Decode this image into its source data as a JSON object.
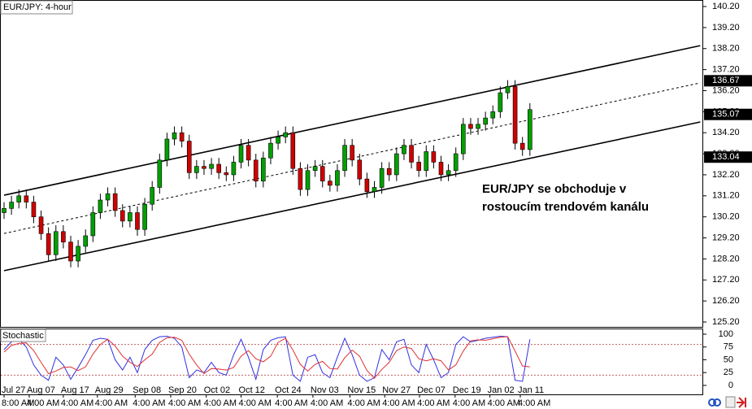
{
  "chart_data": [
    {
      "type": "candlestick",
      "title": "EUR/JPY: 4-hour",
      "open": [
        130.4,
        130.6,
        130.9,
        131.2,
        130.9,
        130.2,
        129.4,
        128.4,
        129.5,
        129.0,
        128.1,
        128.8,
        129.3,
        130.4,
        131.0,
        131.3,
        130.5,
        130.0,
        130.4,
        129.6,
        130.8,
        131.6,
        132.9,
        133.9,
        134.2,
        133.8,
        132.3,
        132.6,
        132.5,
        132.7,
        132.3,
        132.2,
        132.8,
        133.6,
        132.9,
        131.9,
        133.0,
        133.7,
        134.0,
        134.2,
        132.5,
        131.5,
        132.4,
        132.6,
        131.9,
        131.7,
        132.4,
        133.6,
        132.9,
        132.0,
        131.4,
        131.6,
        132.5,
        132.2,
        133.2,
        133.6,
        132.8,
        132.4,
        133.3,
        132.8,
        132.2,
        132.4,
        133.2,
        134.6,
        134.4,
        134.6,
        134.9,
        135.2,
        136.1,
        136.4,
        133.7,
        133.4
      ],
      "high": [
        130.9,
        131.2,
        131.5,
        131.5,
        131.2,
        130.5,
        129.7,
        129.8,
        129.8,
        129.3,
        129.1,
        129.6,
        130.7,
        131.3,
        131.6,
        131.6,
        130.8,
        130.7,
        130.7,
        131.1,
        131.9,
        133.2,
        134.2,
        134.5,
        134.5,
        134.1,
        132.9,
        132.9,
        133.0,
        133.0,
        132.6,
        133.1,
        133.9,
        133.9,
        133.2,
        133.3,
        134.0,
        134.3,
        134.5,
        134.5,
        132.8,
        132.7,
        132.9,
        132.9,
        132.2,
        132.7,
        133.9,
        133.9,
        133.2,
        132.3,
        131.9,
        132.8,
        132.8,
        133.5,
        133.9,
        133.9,
        133.1,
        133.6,
        133.6,
        133.1,
        132.7,
        133.5,
        134.9,
        134.9,
        134.9,
        135.2,
        135.5,
        136.4,
        136.7,
        136.7,
        134.0,
        135.6
      ],
      "low": [
        130.1,
        130.3,
        130.6,
        130.6,
        129.9,
        129.1,
        128.1,
        128.1,
        128.7,
        127.8,
        127.8,
        128.5,
        129.0,
        130.1,
        130.7,
        130.2,
        129.7,
        129.7,
        129.3,
        129.3,
        130.5,
        131.3,
        132.6,
        133.6,
        133.5,
        132.0,
        132.0,
        132.2,
        132.2,
        132.0,
        131.9,
        131.9,
        132.5,
        132.6,
        131.6,
        131.6,
        132.7,
        133.4,
        133.7,
        132.2,
        131.2,
        131.2,
        132.1,
        131.6,
        131.4,
        131.4,
        132.1,
        132.6,
        131.7,
        131.1,
        131.1,
        131.3,
        131.9,
        131.9,
        132.9,
        132.5,
        132.1,
        132.1,
        132.5,
        131.9,
        131.9,
        132.1,
        132.9,
        134.1,
        134.1,
        134.3,
        134.6,
        134.9,
        135.8,
        133.4,
        133.1,
        133.1
      ],
      "close": [
        130.6,
        130.9,
        131.2,
        130.9,
        130.2,
        129.4,
        128.4,
        129.5,
        129.0,
        128.1,
        128.8,
        129.3,
        130.4,
        131.0,
        131.3,
        130.5,
        130.0,
        130.4,
        129.6,
        130.8,
        131.6,
        132.9,
        133.9,
        134.2,
        133.8,
        132.3,
        132.6,
        132.5,
        132.7,
        132.3,
        132.2,
        132.8,
        133.6,
        132.9,
        131.9,
        133.0,
        133.7,
        134.0,
        134.2,
        132.5,
        131.5,
        132.4,
        132.6,
        131.9,
        131.7,
        132.4,
        133.6,
        132.9,
        132.0,
        131.4,
        131.6,
        132.5,
        132.2,
        133.2,
        133.6,
        132.8,
        132.4,
        133.3,
        132.8,
        132.2,
        132.4,
        133.2,
        134.6,
        134.4,
        134.6,
        134.9,
        135.2,
        136.1,
        136.4,
        133.7,
        133.4,
        135.3
      ],
      "up_color": "#00a000",
      "down_color": "#d00000",
      "ylim": [
        124.93,
        140.51
      ],
      "yticks": [
        {
          "value": 140.2,
          "label": "140.20"
        },
        {
          "value": 139.2,
          "label": "139.20"
        },
        {
          "value": 138.2,
          "label": "138.20"
        },
        {
          "value": 137.2,
          "label": "137.20"
        },
        {
          "value": 136.2,
          "label": "136.20"
        },
        {
          "value": 135.2,
          "label": "135.20"
        },
        {
          "value": 134.2,
          "label": "134.20"
        },
        {
          "value": 133.2,
          "label": "133.20"
        },
        {
          "value": 132.2,
          "label": "132.20"
        },
        {
          "value": 131.2,
          "label": "131.20"
        },
        {
          "value": 130.2,
          "label": "130.20"
        },
        {
          "value": 129.2,
          "label": "129.20"
        },
        {
          "value": 128.2,
          "label": "128.20"
        },
        {
          "value": 127.2,
          "label": "127.20"
        },
        {
          "value": 126.2,
          "label": "126.20"
        },
        {
          "value": 125.2,
          "label": "125.20"
        }
      ],
      "price_labels": [
        136.67,
        135.07,
        133.04
      ],
      "channel": [
        {
          "style": "solid",
          "x": [
            0,
            94
          ],
          "y": [
            131.23,
            138.34
          ]
        },
        {
          "style": "dashed",
          "x": [
            0,
            94
          ],
          "y": [
            129.41,
            136.57
          ]
        },
        {
          "style": "solid",
          "x": [
            0,
            94
          ],
          "y": [
            127.64,
            134.71
          ]
        }
      ],
      "annotation": [
        "EUR/JPY se obchoduje v",
        "rostoucím trendovém kanálu"
      ]
    },
    {
      "type": "line",
      "title": "Stochastic",
      "series": [
        {
          "color": "#3030e0",
          "values": [
            70,
            85,
            90,
            75,
            40,
            20,
            10,
            55,
            40,
            12,
            35,
            60,
            88,
            92,
            90,
            50,
            30,
            55,
            25,
            70,
            88,
            95,
            96,
            92,
            75,
            15,
            30,
            25,
            45,
            25,
            20,
            60,
            90,
            55,
            12,
            70,
            88,
            93,
            95,
            20,
            8,
            55,
            60,
            25,
            15,
            55,
            92,
            60,
            20,
            8,
            15,
            70,
            50,
            85,
            90,
            40,
            25,
            80,
            50,
            15,
            25,
            80,
            95,
            85,
            88,
            92,
            94,
            96,
            95,
            10,
            8,
            90
          ]
        },
        {
          "color": "#e03030",
          "values": [
            65,
            78,
            82,
            83,
            68,
            45,
            23,
            28,
            35,
            36,
            29,
            36,
            61,
            80,
            90,
            77,
            57,
            45,
            37,
            50,
            61,
            84,
            93,
            94,
            88,
            61,
            40,
            23,
            33,
            32,
            30,
            35,
            57,
            68,
            52,
            46,
            57,
            84,
            92,
            69,
            41,
            28,
            41,
            47,
            33,
            32,
            54,
            69,
            57,
            29,
            14,
            31,
            45,
            68,
            75,
            72,
            52,
            48,
            52,
            48,
            30,
            40,
            67,
            87,
            89,
            88,
            91,
            94,
            95,
            67,
            38,
            36
          ]
        }
      ],
      "levels": [
        80,
        20
      ],
      "ylim": [
        -17.5,
        109.5
      ],
      "yticks": [
        100,
        75,
        50,
        25,
        0
      ],
      "x_labels": [
        {
          "index": 0,
          "label": "Jul 27",
          "time": "8:00 AM"
        },
        {
          "index": 3.4,
          "label": "Aug 07",
          "time": "4:00 AM"
        },
        {
          "index": 8,
          "label": "Aug 17",
          "time": "4:00 AM"
        },
        {
          "index": 12.6,
          "label": "Aug 29",
          "time": "4:00 AM"
        },
        {
          "index": 17.7,
          "label": "Sep 08",
          "time": "4:00 AM"
        },
        {
          "index": 22.5,
          "label": "Sep 20",
          "time": "4:00 AM"
        },
        {
          "index": 27.3,
          "label": "Oct 02",
          "time": "4:00 AM"
        },
        {
          "index": 32,
          "label": "Oct 12",
          "time": "4:00 AM"
        },
        {
          "index": 36.9,
          "label": "Oct 24",
          "time": "4:00 AM"
        },
        {
          "index": 41.7,
          "label": "Nov 03",
          "time": "4:00 AM"
        },
        {
          "index": 46.7,
          "label": "Nov 15",
          "time": "4:00 AM"
        },
        {
          "index": 51.4,
          "label": "Nov 27",
          "time": "4:00 AM"
        },
        {
          "index": 56.1,
          "label": "Dec 07",
          "time": "4:00 AM"
        },
        {
          "index": 60.9,
          "label": "Dec 19",
          "time": "4:00 AM"
        },
        {
          "index": 65.6,
          "label": "Jan 02",
          "time": "4:00 AM"
        },
        {
          "index": 69.7,
          "label": "Jan 11",
          "time": "4:00 AM"
        }
      ]
    }
  ]
}
